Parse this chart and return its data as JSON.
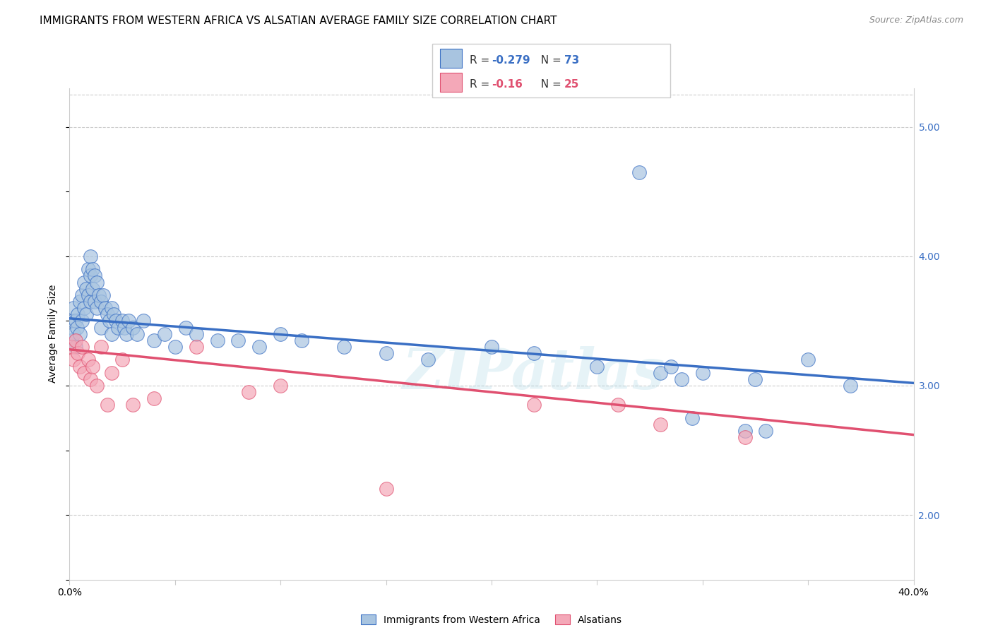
{
  "title": "IMMIGRANTS FROM WESTERN AFRICA VS ALSATIAN AVERAGE FAMILY SIZE CORRELATION CHART",
  "source": "Source: ZipAtlas.com",
  "ylabel": "Average Family Size",
  "right_yticks": [
    2.0,
    3.0,
    4.0,
    5.0
  ],
  "blue_label": "Immigrants from Western Africa",
  "pink_label": "Alsatians",
  "blue_R": -0.279,
  "blue_N": 73,
  "pink_R": -0.16,
  "pink_N": 25,
  "blue_color": "#a8c4e0",
  "blue_line_color": "#3a6fc4",
  "pink_color": "#f4a8b8",
  "pink_line_color": "#e05070",
  "watermark": "ZIPatlas",
  "blue_scatter_x": [
    0.1,
    0.15,
    0.2,
    0.2,
    0.3,
    0.3,
    0.35,
    0.4,
    0.5,
    0.5,
    0.6,
    0.6,
    0.7,
    0.7,
    0.8,
    0.8,
    0.9,
    0.9,
    1.0,
    1.0,
    1.0,
    1.1,
    1.1,
    1.2,
    1.2,
    1.3,
    1.3,
    1.4,
    1.5,
    1.5,
    1.6,
    1.7,
    1.8,
    1.9,
    2.0,
    2.0,
    2.1,
    2.2,
    2.3,
    2.5,
    2.6,
    2.7,
    2.8,
    3.0,
    3.2,
    3.5,
    4.0,
    4.5,
    5.0,
    5.5,
    6.0,
    7.0,
    8.0,
    9.0,
    10.0,
    11.0,
    13.0,
    15.0,
    17.0,
    20.0,
    22.0,
    25.0,
    27.0,
    28.0,
    29.0,
    30.0,
    32.0,
    33.0,
    35.0,
    37.0,
    28.5,
    29.5,
    32.5
  ],
  "blue_scatter_y": [
    3.35,
    3.5,
    3.4,
    3.6,
    3.5,
    3.3,
    3.45,
    3.55,
    3.65,
    3.4,
    3.7,
    3.5,
    3.8,
    3.6,
    3.75,
    3.55,
    3.9,
    3.7,
    4.0,
    3.85,
    3.65,
    3.9,
    3.75,
    3.85,
    3.65,
    3.8,
    3.6,
    3.7,
    3.65,
    3.45,
    3.7,
    3.6,
    3.55,
    3.5,
    3.6,
    3.4,
    3.55,
    3.5,
    3.45,
    3.5,
    3.45,
    3.4,
    3.5,
    3.45,
    3.4,
    3.5,
    3.35,
    3.4,
    3.3,
    3.45,
    3.4,
    3.35,
    3.35,
    3.3,
    3.4,
    3.35,
    3.3,
    3.25,
    3.2,
    3.3,
    3.25,
    3.15,
    4.65,
    3.1,
    3.05,
    3.1,
    2.65,
    2.65,
    3.2,
    3.0,
    3.15,
    2.75,
    3.05
  ],
  "pink_scatter_x": [
    0.1,
    0.2,
    0.3,
    0.4,
    0.5,
    0.6,
    0.7,
    0.9,
    1.0,
    1.1,
    1.3,
    1.5,
    1.8,
    2.0,
    2.5,
    3.0,
    4.0,
    6.0,
    8.5,
    10.0,
    15.0,
    22.0,
    26.0,
    28.0,
    32.0
  ],
  "pink_scatter_y": [
    3.3,
    3.2,
    3.35,
    3.25,
    3.15,
    3.3,
    3.1,
    3.2,
    3.05,
    3.15,
    3.0,
    3.3,
    2.85,
    3.1,
    3.2,
    2.85,
    2.9,
    3.3,
    2.95,
    3.0,
    2.2,
    2.85,
    2.85,
    2.7,
    2.6
  ],
  "xmin": 0.0,
  "xmax": 40.0,
  "ymin": 1.5,
  "ymax": 5.3,
  "grid_color": "#cccccc",
  "background_color": "#ffffff",
  "title_fontsize": 11,
  "source_fontsize": 9,
  "axis_fontsize": 10,
  "legend_fontsize": 11
}
